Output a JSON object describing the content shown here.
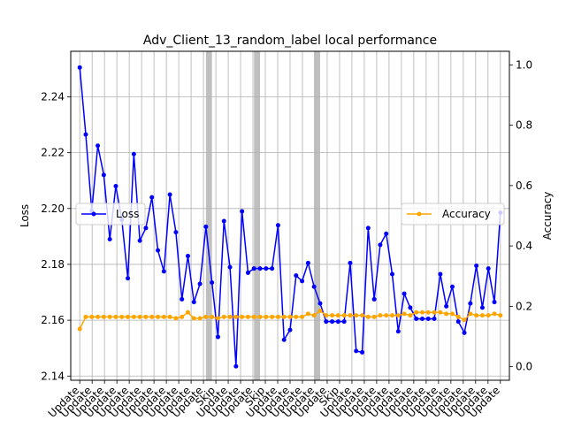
{
  "chart_data": {
    "type": "line",
    "title": "Adv_Client_13_random_label local performance",
    "ylabel_left": "Loss",
    "ylabel_right": "Accuracy",
    "y_left_lim": [
      2.1385,
      2.2563
    ],
    "y_left_ticks": [
      2.14,
      2.16,
      2.18,
      2.2,
      2.22,
      2.24
    ],
    "y_right_lim": [
      -0.045,
      1.045
    ],
    "y_right_ticks": [
      0.0,
      0.2,
      0.4,
      0.6,
      0.8,
      1.0
    ],
    "grid": true,
    "x_count": 71,
    "x_tick_labels": [
      "Update",
      "Update",
      "Update",
      "Update",
      "Update",
      "Update",
      "Update",
      "Update",
      "Update",
      "Update",
      "Update",
      "Skip",
      "Update",
      "Update",
      "Update",
      "Skip",
      "Update",
      "Update",
      "Update",
      "Update",
      "Update",
      "Skip",
      "Update",
      "Update",
      "Update",
      "Update",
      "Update",
      "Update",
      "Update",
      "Update",
      "Update",
      "Update",
      "Update",
      "Update",
      "Update"
    ],
    "skip_regions": [
      [
        21,
        22
      ],
      [
        29,
        30
      ],
      [
        39,
        40
      ]
    ],
    "series": [
      {
        "name": "Loss",
        "color": "#0000ff",
        "axis": "left",
        "legend_loc": "center-left",
        "values": [
          2.2505,
          2.2265,
          2.199,
          2.2225,
          2.212,
          2.189,
          2.208,
          2.196,
          2.175,
          2.2195,
          2.1885,
          2.193,
          2.204,
          2.185,
          2.1775,
          2.205,
          2.1915,
          2.1675,
          2.183,
          2.1665,
          2.173,
          2.1935,
          2.1735,
          2.154,
          2.1955,
          2.179,
          2.1435,
          2.199,
          2.177,
          2.1785,
          2.1785,
          2.1785,
          2.1785,
          2.194,
          2.153,
          2.1565,
          2.176,
          2.174,
          2.1805,
          2.172,
          2.166,
          2.1595,
          2.1595,
          2.1595,
          2.1595,
          2.1805,
          2.149,
          2.1485,
          2.193,
          2.1675,
          2.187,
          2.191,
          2.1765,
          2.156,
          2.1695,
          2.1645,
          2.1605,
          2.1605,
          2.1605,
          2.1605,
          2.1765,
          2.165,
          2.172,
          2.1595,
          2.1555,
          2.166,
          2.1795,
          2.1645,
          2.1785,
          2.1665,
          2.1985
        ]
      },
      {
        "name": "Accuracy",
        "color": "#ffa500",
        "axis": "right",
        "legend_loc": "center-right",
        "values": [
          0.125,
          0.165,
          0.165,
          0.165,
          0.165,
          0.165,
          0.165,
          0.165,
          0.165,
          0.165,
          0.165,
          0.165,
          0.165,
          0.165,
          0.165,
          0.165,
          0.16,
          0.165,
          0.18,
          0.16,
          0.16,
          0.165,
          0.165,
          0.16,
          0.165,
          0.165,
          0.165,
          0.165,
          0.165,
          0.165,
          0.165,
          0.165,
          0.165,
          0.165,
          0.165,
          0.165,
          0.165,
          0.165,
          0.175,
          0.17,
          0.185,
          0.17,
          0.17,
          0.17,
          0.17,
          0.17,
          0.17,
          0.17,
          0.165,
          0.165,
          0.17,
          0.17,
          0.17,
          0.17,
          0.175,
          0.17,
          0.18,
          0.18,
          0.18,
          0.18,
          0.18,
          0.175,
          0.175,
          0.165,
          0.155,
          0.175,
          0.17,
          0.17,
          0.17,
          0.175,
          0.17
        ]
      }
    ]
  }
}
